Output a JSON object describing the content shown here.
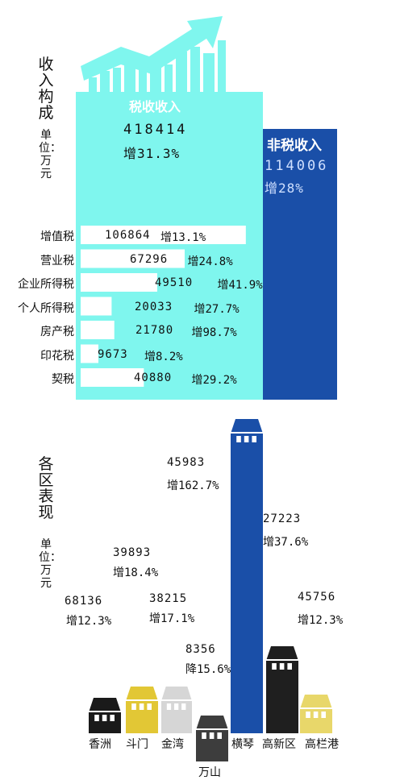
{
  "colors": {
    "tax_panel": "#7ff6ee",
    "nontax_panel": "#1a4fa8",
    "tax_bar": "#ffffff",
    "xiangzhou": "#1a1a1a",
    "doumen": "#e2c735",
    "jinwan": "#d6d6d6",
    "wanshan": "#3d3d3d",
    "hengqin": "#1a4fa8",
    "gaoxin": "#1f1f1f",
    "gaolangang": "#e8d76a"
  },
  "revenue": {
    "title": "收入构成",
    "unit": "单位：万元",
    "tax": {
      "label": "税收收入",
      "value": "418414",
      "growth": "增31.3%"
    },
    "nontax": {
      "label": "非税收入",
      "value": "114006",
      "growth": "增28%"
    }
  },
  "districts_section": {
    "title": "各区表现",
    "unit": "单位：万元"
  },
  "chart_data": [
    {
      "type": "bar",
      "orientation": "horizontal",
      "categories": [
        "增值税",
        "营业税",
        "企业所得税",
        "个人所得税",
        "房产税",
        "印花税",
        "契税"
      ],
      "values": [
        106864,
        67296,
        49510,
        20033,
        21780,
        9673,
        40880
      ],
      "value_labels": [
        "106864",
        "67296",
        "49510",
        "20033",
        "21780",
        "9673",
        "40880"
      ],
      "growth_labels": [
        "增13.1%",
        "增24.8%",
        "增41.9%",
        "增27.7%",
        "增98.7%",
        "增8.2%",
        "增29.2%"
      ]
    },
    {
      "type": "bar",
      "orientation": "vertical",
      "categories": [
        "香洲",
        "斗门",
        "金湾",
        "万山",
        "横琴",
        "高新区",
        "高栏港"
      ],
      "values": [
        68136,
        39893,
        38215,
        8356,
        45983,
        27223,
        45756
      ],
      "value_labels": [
        "68136",
        "39893",
        "38215",
        "8356",
        "45983",
        "27223",
        "45756"
      ],
      "change_labels": [
        "增12.3%",
        "增18.4%",
        "增17.1%",
        "降15.6%",
        "增162.7%",
        "增37.6%",
        "增12.3%"
      ]
    }
  ]
}
